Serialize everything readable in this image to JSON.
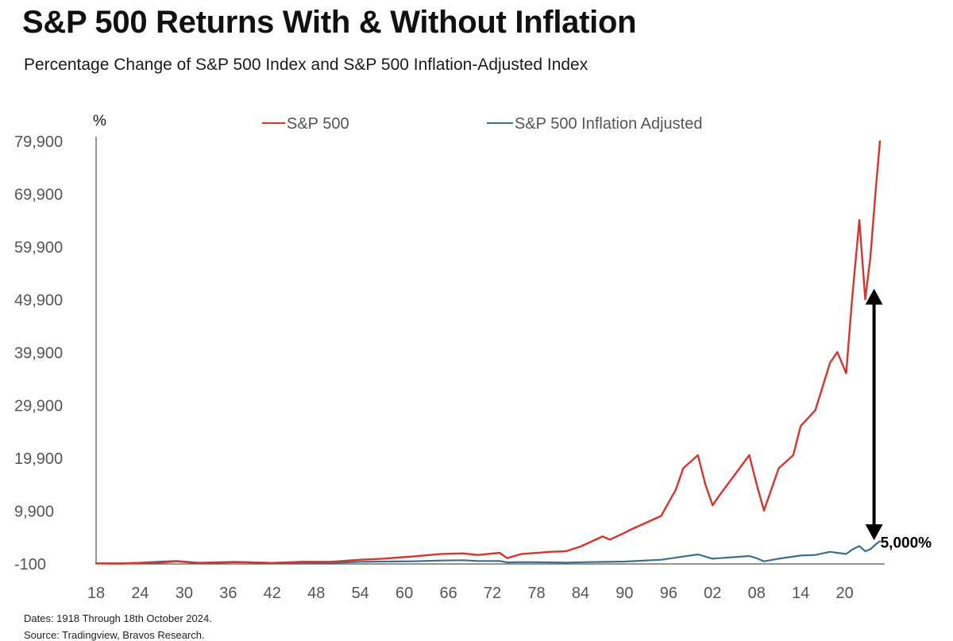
{
  "title": "S&P 500 Returns With & Without Inflation",
  "subtitle": "Percentage Change of S&P 500 Index and S&P 500 Inflation-Adjusted Index",
  "footer": {
    "dates": "Dates: 1918 Through 18th October 2024.",
    "source": "Source: Tradingview, Bravos Research."
  },
  "colors": {
    "nominal": "#d9342b",
    "real": "#3d6f8a",
    "axis": "#555555",
    "tick_text": "#555555",
    "annotation": "#000000"
  },
  "chart_data": {
    "type": "line",
    "title": "S&P 500 Returns With & Without Inflation",
    "subtitle": "Percentage Change of S&P 500 Index and S&P 500 Inflation-Adjusted Index",
    "ylabel": "%",
    "xlabel": "",
    "xlim": [
      1918,
      2024.8
    ],
    "ylim": [
      -100,
      79900
    ],
    "y_ticks": [
      -100,
      9900,
      19900,
      29900,
      39900,
      49900,
      59900,
      69900,
      79900
    ],
    "y_tick_labels": [
      "-100",
      "9,900",
      "19,900",
      "29,900",
      "39,900",
      "49,900",
      "59,900",
      "69,900",
      "79,900"
    ],
    "x_ticks": [
      1918,
      1924,
      1930,
      1936,
      1942,
      1948,
      1954,
      1960,
      1966,
      1972,
      1978,
      1984,
      1990,
      1996,
      2002,
      2008,
      2014,
      2020
    ],
    "x_tick_labels": [
      "18",
      "24",
      "30",
      "36",
      "42",
      "48",
      "54",
      "60",
      "66",
      "72",
      "78",
      "84",
      "90",
      "96",
      "02",
      "08",
      "14",
      "20"
    ],
    "grid": false,
    "legend": "top-center",
    "series": [
      {
        "name": "S&P 500",
        "color": "#d9342b",
        "x": [
          1918,
          1921,
          1924,
          1927,
          1929,
          1932,
          1937,
          1942,
          1946,
          1950,
          1954,
          1957,
          1961,
          1965,
          1968,
          1970,
          1973,
          1974,
          1976,
          1980,
          1982,
          1984,
          1987,
          1988,
          1990,
          1991,
          1995,
          1997,
          1998,
          2000,
          2001,
          2002,
          2003,
          2007,
          2008,
          2009,
          2011,
          2013,
          2014,
          2016,
          2018,
          2019,
          2020.2,
          2021,
          2022,
          2022.8,
          2023.5,
          2024.3,
          2024.8
        ],
        "y": [
          0,
          -20,
          40,
          180,
          400,
          50,
          250,
          100,
          300,
          300,
          700,
          900,
          1300,
          1800,
          1900,
          1600,
          2000,
          1000,
          1800,
          2200,
          2300,
          3200,
          5100,
          4500,
          5800,
          6500,
          9000,
          14000,
          18000,
          20500,
          15000,
          11000,
          13000,
          20500,
          15000,
          10000,
          18000,
          20500,
          26000,
          29000,
          38000,
          40000,
          36000,
          50000,
          65000,
          50000,
          58000,
          72000,
          79900
        ]
      },
      {
        "name": "S&P 500 Inflation Adjusted",
        "color": "#3d6f8a",
        "x": [
          1918,
          1921,
          1924,
          1927,
          1929,
          1932,
          1937,
          1942,
          1946,
          1950,
          1954,
          1957,
          1961,
          1965,
          1968,
          1970,
          1973,
          1974,
          1976,
          1980,
          1982,
          1985,
          1990,
          1995,
          1998,
          2000,
          2001,
          2002,
          2003,
          2007,
          2008,
          2009,
          2011,
          2014,
          2016,
          2018,
          2019,
          2020.2,
          2021,
          2022,
          2022.8,
          2023.5,
          2024.3,
          2024.8
        ],
        "y": [
          0,
          20,
          120,
          350,
          450,
          120,
          300,
          100,
          150,
          100,
          300,
          350,
          400,
          550,
          600,
          450,
          450,
          200,
          250,
          200,
          150,
          250,
          350,
          700,
          1300,
          1700,
          1300,
          900,
          1000,
          1400,
          1000,
          400,
          900,
          1500,
          1600,
          2200,
          2000,
          1800,
          2600,
          3300,
          2300,
          2700,
          3700,
          4200
        ]
      }
    ],
    "annotations": [
      {
        "type": "double-arrow",
        "x": 2024,
        "y_top": 52000,
        "y_bottom": 4400
      },
      {
        "type": "label",
        "text": "5,000%",
        "x": 2024,
        "y": 3000
      }
    ]
  }
}
